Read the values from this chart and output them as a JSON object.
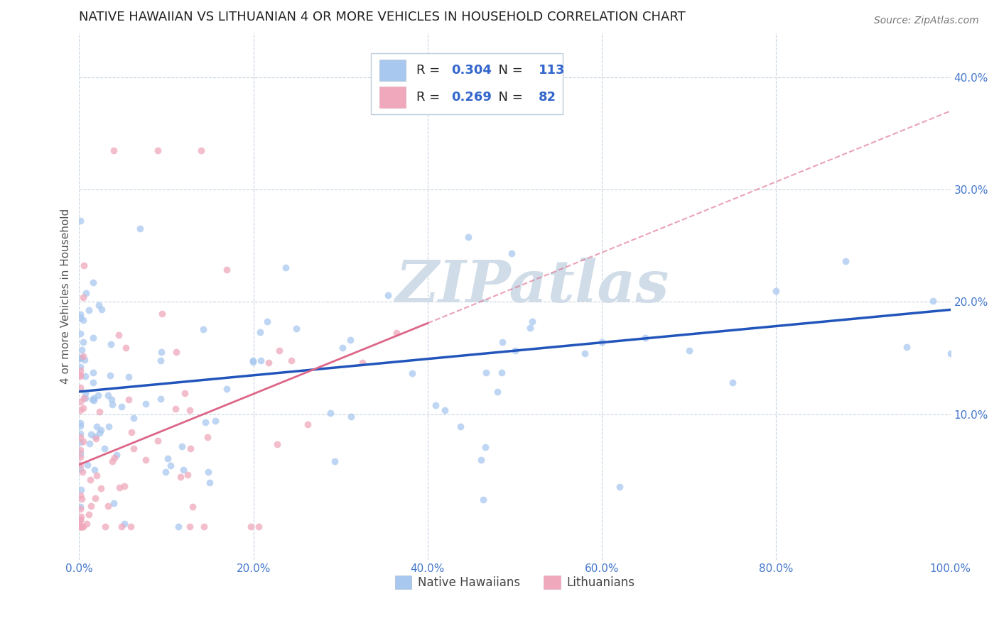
{
  "title": "NATIVE HAWAIIAN VS LITHUANIAN 4 OR MORE VEHICLES IN HOUSEHOLD CORRELATION CHART",
  "source": "Source: ZipAtlas.com",
  "ylabel": "4 or more Vehicles in Household",
  "xticklabels": [
    "0.0%",
    "20.0%",
    "40.0%",
    "60.0%",
    "80.0%",
    "100.0%"
  ],
  "xticks": [
    0.0,
    0.2,
    0.4,
    0.6,
    0.8,
    1.0
  ],
  "yticklabels": [
    "10.0%",
    "20.0%",
    "30.0%",
    "40.0%"
  ],
  "yticks": [
    0.1,
    0.2,
    0.3,
    0.4
  ],
  "xlim": [
    0,
    1.0
  ],
  "ylim": [
    -0.03,
    0.44
  ],
  "legend_label1": "Native Hawaiians",
  "legend_label2": "Lithuanians",
  "R1": "0.304",
  "N1": "113",
  "R2": "0.269",
  "N2": "82",
  "color1": "#a8c8f0",
  "color2": "#f0a8bc",
  "line_color1": "#2255bb",
  "line_color2": "#dd6688",
  "watermark": "ZIPatlas",
  "watermark_color": "#d0dce8",
  "background_color": "#ffffff",
  "grid_color": "#c8d4e0",
  "title_fontsize": 13,
  "axis_label_fontsize": 11,
  "tick_fontsize": 11,
  "source_fontsize": 10
}
